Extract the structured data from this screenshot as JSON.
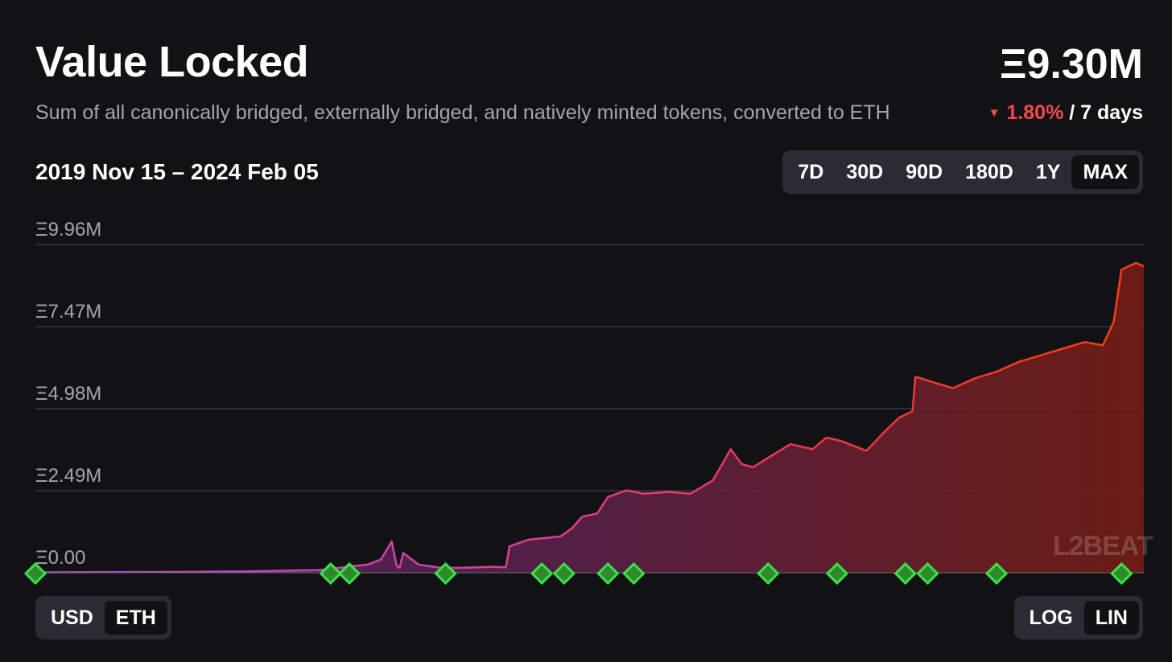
{
  "header": {
    "title": "Value Locked",
    "subtitle": "Sum of all canonically bridged, externally bridged, and natively minted tokens, converted to ETH",
    "total_value": "Ξ9.30M",
    "change_pct": "1.80%",
    "change_period": "/ 7 days",
    "change_direction": "down",
    "date_range": "2019 Nov 15 – 2024 Feb 05"
  },
  "timeframes": {
    "options": [
      "7D",
      "30D",
      "90D",
      "180D",
      "1Y",
      "MAX"
    ],
    "selected": "MAX"
  },
  "currency": {
    "options": [
      "USD",
      "ETH"
    ],
    "selected": "ETH"
  },
  "scale": {
    "options": [
      "LOG",
      "LIN"
    ],
    "selected": "LIN"
  },
  "watermark": "L2BEAT",
  "colors": {
    "background": "#121214",
    "line_start": "#b24fd6",
    "line_end": "#ff3b14",
    "negative": "#f24a4a",
    "milestone": "#3ee04a"
  },
  "chart_data": {
    "type": "area",
    "x_range": [
      "2019-11-15",
      "2024-02-05"
    ],
    "ylim": [
      0,
      9960000
    ],
    "yticks": [
      0,
      2490000,
      4980000,
      7470000,
      9960000
    ],
    "ytick_labels": [
      "Ξ0.00",
      "Ξ2.49M",
      "Ξ4.98M",
      "Ξ7.47M",
      "Ξ9.96M"
    ],
    "grid": true,
    "x": [
      "2019-11-15",
      "2020-03-01",
      "2020-06-01",
      "2020-09-01",
      "2020-12-15",
      "2021-02-20",
      "2021-03-10",
      "2021-03-25",
      "2021-04-01",
      "2021-04-05",
      "2021-04-10",
      "2021-05-01",
      "2021-06-01",
      "2021-07-01",
      "2021-08-15",
      "2021-08-31",
      "2021-09-05",
      "2021-10-01",
      "2021-11-15",
      "2021-12-01",
      "2021-12-15",
      "2022-01-05",
      "2022-01-20",
      "2022-02-15",
      "2022-03-10",
      "2022-04-15",
      "2022-05-15",
      "2022-06-15",
      "2022-07-10",
      "2022-07-25",
      "2022-08-10",
      "2022-09-01",
      "2022-10-01",
      "2022-11-01",
      "2022-11-20",
      "2022-12-10",
      "2023-01-15",
      "2023-02-10",
      "2023-03-01",
      "2023-03-20",
      "2023-03-24",
      "2023-04-15",
      "2023-05-15",
      "2023-06-15",
      "2023-07-15",
      "2023-08-15",
      "2023-09-15",
      "2023-10-15",
      "2023-11-15",
      "2023-12-10",
      "2023-12-25",
      "2024-01-05",
      "2024-01-25",
      "2024-02-05"
    ],
    "y": [
      10000,
      20000,
      25000,
      40000,
      80000,
      250000,
      400000,
      950000,
      200000,
      150000,
      600000,
      250000,
      150000,
      150000,
      180000,
      160000,
      800000,
      1000000,
      1100000,
      1350000,
      1700000,
      1800000,
      2300000,
      2500000,
      2400000,
      2450000,
      2400000,
      2800000,
      3750000,
      3300000,
      3200000,
      3500000,
      3900000,
      3750000,
      4100000,
      4000000,
      3700000,
      4300000,
      4700000,
      4900000,
      5950000,
      5800000,
      5600000,
      5900000,
      6100000,
      6400000,
      6600000,
      6800000,
      7000000,
      6900000,
      7600000,
      9200000,
      9400000,
      9300000
    ],
    "milestones": [
      "2019-11-15",
      "2020-12-30",
      "2021-01-25",
      "2021-06-08",
      "2021-10-20",
      "2021-11-20",
      "2022-01-20",
      "2022-02-25",
      "2022-08-31",
      "2022-12-05",
      "2023-03-10",
      "2023-04-10",
      "2023-07-15",
      "2024-01-05"
    ]
  }
}
